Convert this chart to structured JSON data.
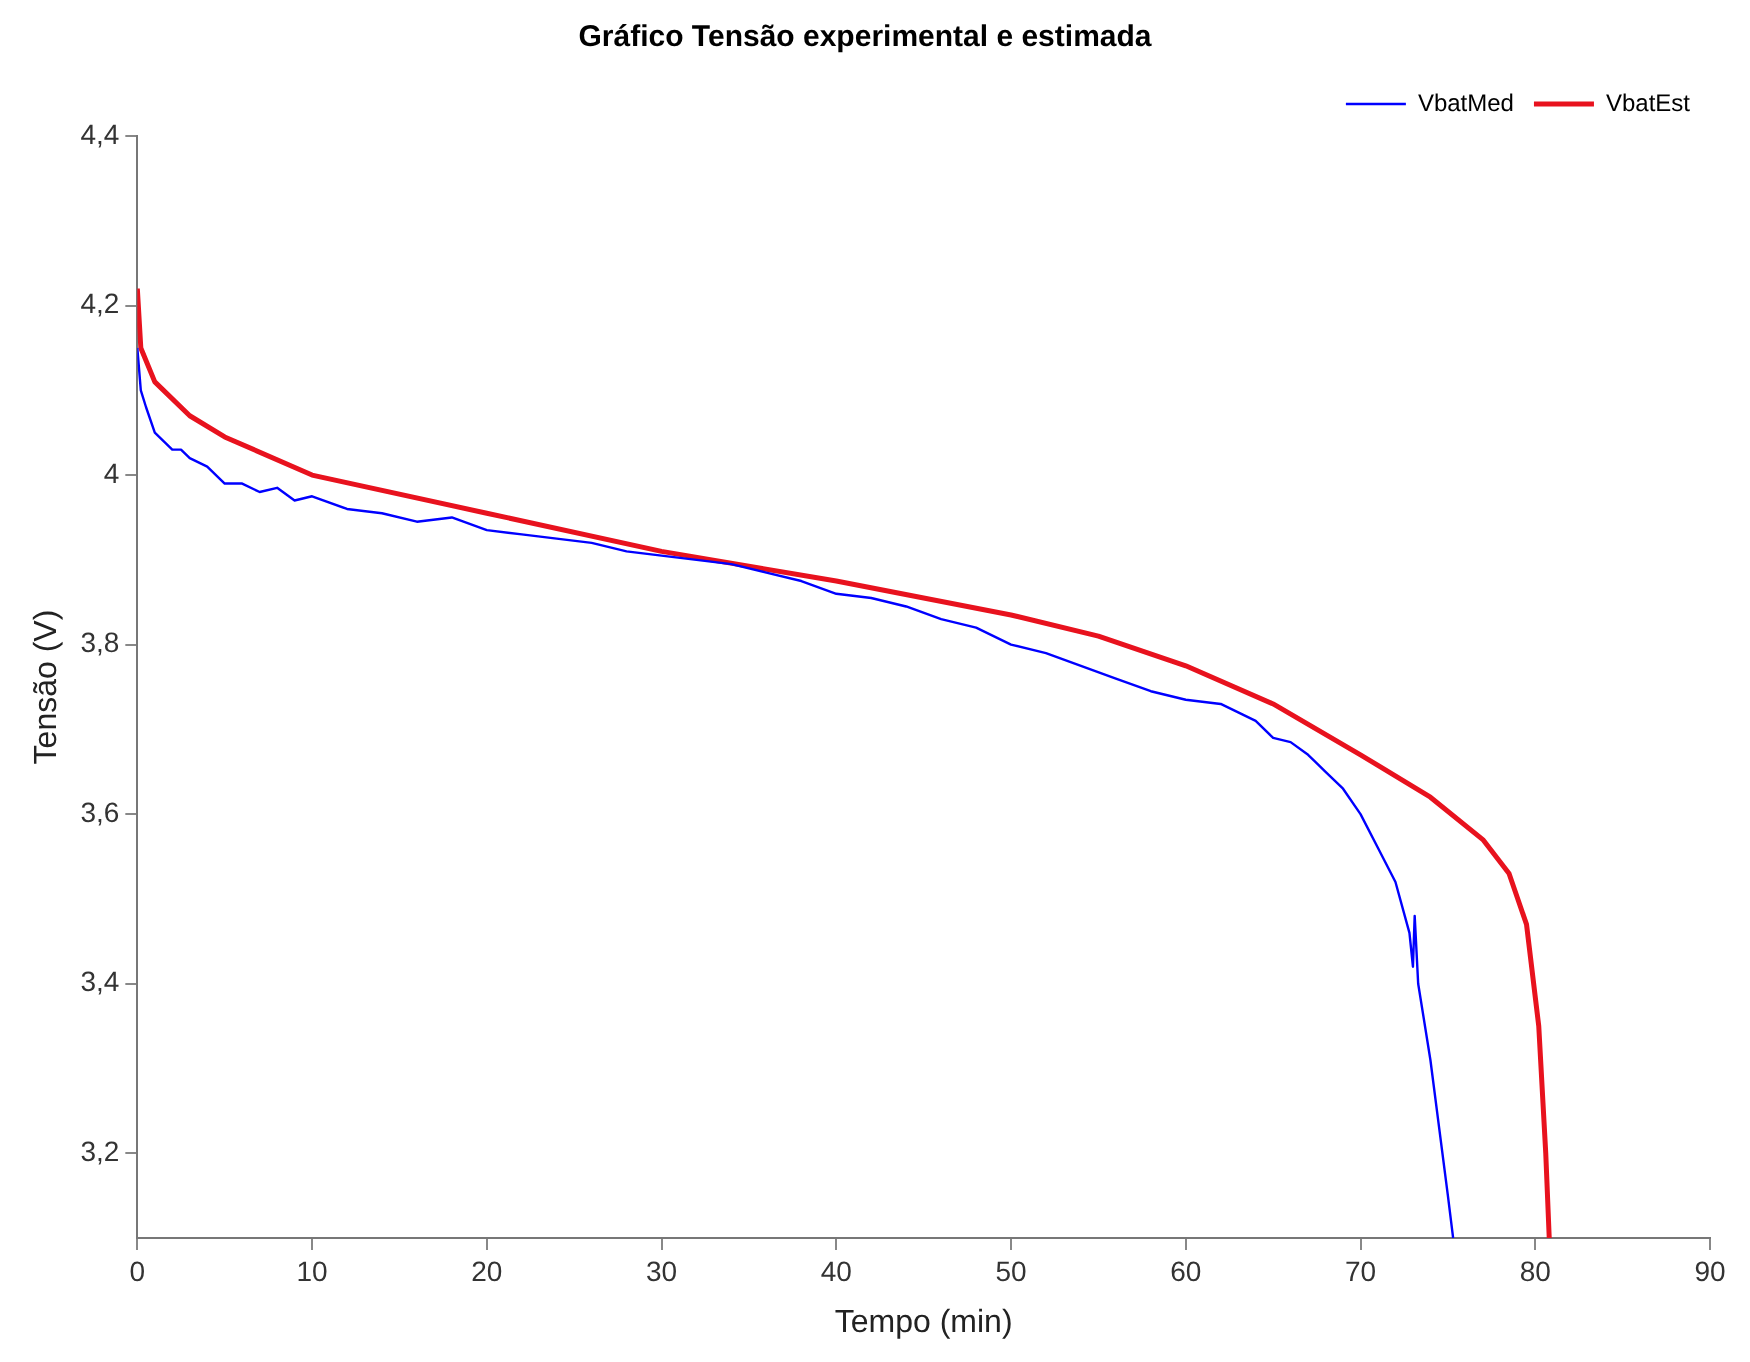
{
  "chart_data": {
    "type": "line",
    "title": "Gráfico Tensão experimental e estimada",
    "xlabel": "Tempo (min)",
    "ylabel": "Tensão (V)",
    "xlim": [
      0,
      90
    ],
    "ylim": [
      3.1,
      4.4
    ],
    "xticks": [
      0,
      10,
      20,
      30,
      40,
      50,
      60,
      70,
      80,
      90
    ],
    "yticks": [
      {
        "value": 3.2,
        "label": "3,2"
      },
      {
        "value": 3.4,
        "label": "3,4"
      },
      {
        "value": 3.6,
        "label": "3,6"
      },
      {
        "value": 3.8,
        "label": "3,8"
      },
      {
        "value": 4,
        "label": "4"
      },
      {
        "value": 4.2,
        "label": "4,2"
      },
      {
        "value": 4.4,
        "label": "4,4"
      }
    ],
    "grid": false,
    "legend": "top right",
    "marker": "none",
    "line_style": "solid",
    "series": [
      {
        "name": "VbatMed",
        "color": "#0000ff",
        "x": [
          0,
          0.2,
          0.5,
          1,
          1.5,
          2,
          2.5,
          3,
          4,
          5,
          6,
          7,
          8,
          9,
          10,
          12,
          14,
          16,
          18,
          20,
          22,
          24,
          26,
          28,
          30,
          32,
          34,
          36,
          38,
          40,
          42,
          44,
          46,
          48,
          50,
          52,
          54,
          56,
          58,
          60,
          62,
          63,
          64,
          65,
          66,
          67,
          68,
          69,
          70,
          71,
          72,
          72.8,
          73,
          73.1,
          73.3,
          74,
          74.5,
          75,
          75.3
        ],
        "values": [
          4.15,
          4.1,
          4.08,
          4.05,
          4.04,
          4.03,
          4.03,
          4.02,
          4.01,
          3.99,
          3.99,
          3.98,
          3.985,
          3.97,
          3.975,
          3.96,
          3.955,
          3.945,
          3.95,
          3.935,
          3.93,
          3.925,
          3.92,
          3.91,
          3.905,
          3.9,
          3.895,
          3.885,
          3.875,
          3.86,
          3.855,
          3.845,
          3.83,
          3.82,
          3.8,
          3.79,
          3.775,
          3.76,
          3.745,
          3.735,
          3.73,
          3.72,
          3.71,
          3.69,
          3.685,
          3.67,
          3.65,
          3.63,
          3.6,
          3.56,
          3.52,
          3.46,
          3.42,
          3.48,
          3.4,
          3.31,
          3.23,
          3.15,
          3.1
        ]
      },
      {
        "name": "VbatEst",
        "color": "#e8121e",
        "x": [
          0,
          0.2,
          1,
          3,
          5,
          10,
          20,
          30,
          40,
          50,
          55,
          60,
          65,
          70,
          74,
          77,
          78.5,
          79.5,
          80.2,
          80.6,
          80.8
        ],
        "values": [
          4.22,
          4.15,
          4.11,
          4.07,
          4.045,
          4.0,
          3.955,
          3.91,
          3.875,
          3.835,
          3.81,
          3.775,
          3.73,
          3.67,
          3.62,
          3.57,
          3.53,
          3.47,
          3.35,
          3.2,
          3.1
        ]
      }
    ]
  }
}
